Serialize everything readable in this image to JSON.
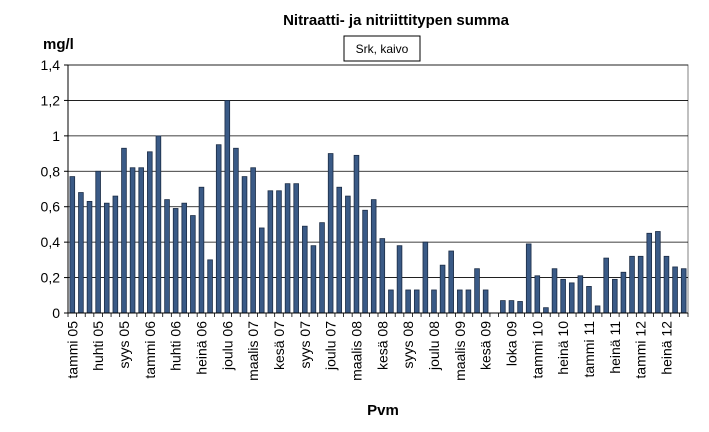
{
  "chart_data": {
    "type": "bar",
    "title": "Nitraatti- ja nitriittitypen summa",
    "ylabel": "mg/l",
    "xlabel": "Pvm",
    "legend": "Srk, kaivo",
    "legend_placement": "top-center",
    "ylim": [
      0,
      1.4
    ],
    "yticks": [
      "0",
      "0,2",
      "0,4",
      "0,6",
      "0,8",
      "1",
      "1,2",
      "1,4"
    ],
    "grid": true,
    "bar_color": "#3a5a86",
    "values": [
      0.77,
      0.68,
      0.63,
      0.8,
      0.62,
      0.66,
      0.93,
      0.82,
      0.82,
      0.91,
      1.0,
      0.64,
      0.59,
      0.62,
      0.55,
      0.71,
      0.3,
      0.95,
      1.2,
      0.93,
      0.77,
      0.82,
      0.48,
      0.69,
      0.69,
      0.73,
      0.73,
      0.49,
      0.38,
      0.51,
      0.9,
      0.71,
      0.66,
      0.89,
      0.58,
      0.64,
      0.42,
      0.13,
      0.38,
      0.13,
      0.13,
      0.4,
      0.13,
      0.27,
      0.35,
      0.13,
      0.13,
      0.25,
      0.13,
      0.0,
      0.07,
      0.07,
      0.065,
      0.39,
      0.21,
      0.03,
      0.25,
      0.19,
      0.17,
      0.21,
      0.15,
      0.04,
      0.31,
      0.19,
      0.23,
      0.32,
      0.32,
      0.45,
      0.46,
      0.32,
      0.26,
      0.25
    ],
    "tick_labels": [
      {
        "index": 0,
        "label": "tammi 05"
      },
      {
        "index": 3,
        "label": "huhti 05"
      },
      {
        "index": 6,
        "label": "syys 05"
      },
      {
        "index": 9,
        "label": "tammi 06"
      },
      {
        "index": 12,
        "label": "huhti 06"
      },
      {
        "index": 15,
        "label": "heinä 06"
      },
      {
        "index": 18,
        "label": "joulu 06"
      },
      {
        "index": 21,
        "label": "maalis 07"
      },
      {
        "index": 24,
        "label": "kesä 07"
      },
      {
        "index": 27,
        "label": "syys 07"
      },
      {
        "index": 30,
        "label": "joulu 07"
      },
      {
        "index": 33,
        "label": "maalis 08"
      },
      {
        "index": 36,
        "label": "kesä 08"
      },
      {
        "index": 39,
        "label": "syys 08"
      },
      {
        "index": 42,
        "label": "joulu 08"
      },
      {
        "index": 45,
        "label": "maalis 09"
      },
      {
        "index": 48,
        "label": "kesä 09"
      },
      {
        "index": 51,
        "label": "loka 09"
      },
      {
        "index": 54,
        "label": "tammi 10"
      },
      {
        "index": 57,
        "label": "heinä 10"
      },
      {
        "index": 60,
        "label": "tammi 11"
      },
      {
        "index": 63,
        "label": "heinä 11"
      },
      {
        "index": 66,
        "label": "tammi 12"
      },
      {
        "index": 69,
        "label": "heinä 12"
      }
    ]
  }
}
